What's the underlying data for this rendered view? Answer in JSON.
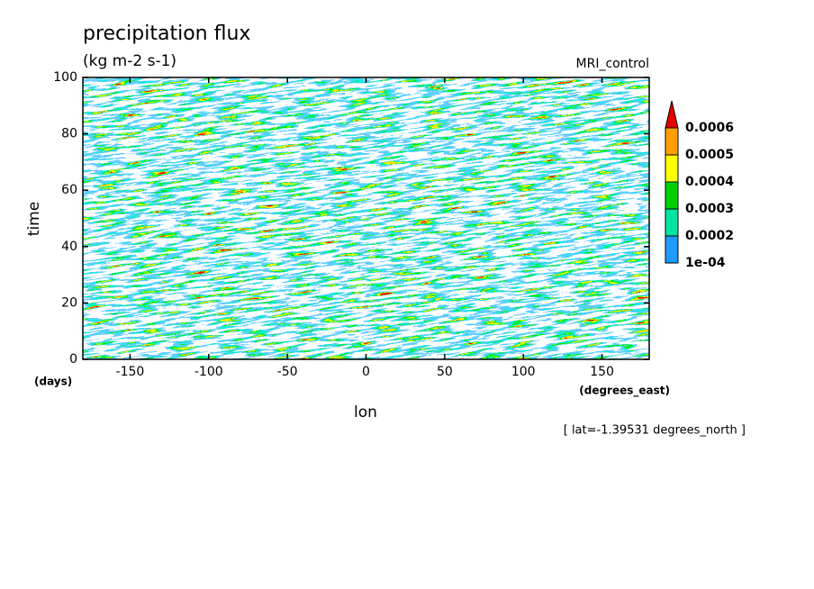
{
  "chart_data": {
    "type": "heatmap",
    "title": "precipitation flux",
    "subtitle": "(kg m-2 s-1)",
    "label": "MRI_control",
    "x_label": "lon",
    "x_unit": "(degrees_east)",
    "y_label": "time",
    "y_unit": "(days)",
    "note": "[ lat=-1.39531 degrees_north ]",
    "xlim": [
      -180,
      180
    ],
    "xticks": [
      -150,
      -100,
      -50,
      0,
      50,
      100,
      150
    ],
    "ylim": [
      0,
      100
    ],
    "yticks": [
      0,
      20,
      40,
      60,
      80,
      100
    ],
    "colorbar": {
      "ticks": [
        {
          "value": 0.0001,
          "label": "1e-04"
        },
        0.0002,
        0.0003,
        0.0004,
        0.0005,
        0.0006
      ],
      "colors": [
        "#1e9bff",
        "#00e6a0",
        "#00d200",
        "#ffff00",
        "#ffa000",
        "#e60000"
      ],
      "extend": "max"
    }
  }
}
